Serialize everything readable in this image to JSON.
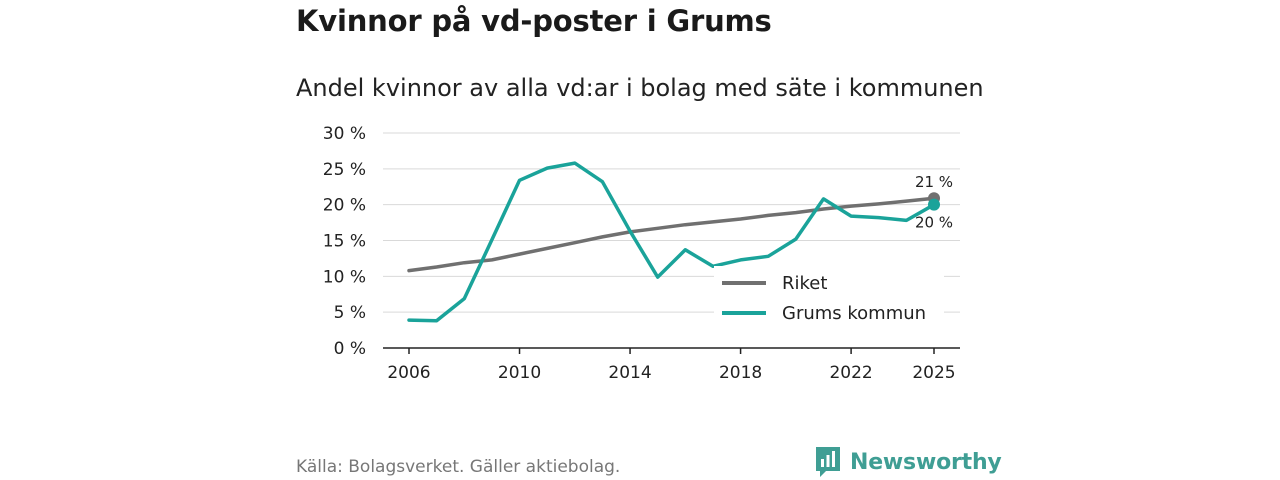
{
  "title": "Kvinnor på vd-poster i Grums",
  "source": "Källa: Bolagsverket. Gäller aktiebolag.",
  "logo": {
    "text": "Newsworthy"
  },
  "colors": {
    "riket": "#707070",
    "grums": "#1aa39a",
    "grid": "#d9d9d9",
    "axis": "#222222"
  },
  "chart_data": {
    "type": "line",
    "title": "Andel kvinnor av alla vd:ar i bolag med säte i kommunen",
    "xlabel": "",
    "ylabel": "",
    "xlim": [
      2005,
      2026
    ],
    "ylim": [
      0,
      30
    ],
    "x_ticks": [
      2006,
      2010,
      2014,
      2018,
      2022,
      2025
    ],
    "x_tick_labels": [
      "2006",
      "2010",
      "2014",
      "2018",
      "2022",
      "2025"
    ],
    "y_ticks": [
      0,
      5,
      10,
      15,
      20,
      25,
      30
    ],
    "y_tick_labels": [
      "0 %",
      "5 %",
      "10 %",
      "15 %",
      "20 %",
      "25 %",
      "30 %"
    ],
    "grid": true,
    "legend_position": "bottom-right",
    "series": [
      {
        "name": "Riket",
        "x": [
          2006,
          2007,
          2008,
          2009,
          2010,
          2011,
          2012,
          2013,
          2014,
          2015,
          2016,
          2017,
          2018,
          2019,
          2020,
          2021,
          2022,
          2023,
          2024,
          2025
        ],
        "values": [
          10.8,
          11.3,
          11.9,
          12.3,
          13.1,
          13.9,
          14.7,
          15.5,
          16.2,
          16.7,
          17.2,
          17.6,
          18.0,
          18.5,
          18.9,
          19.4,
          19.8,
          20.1,
          20.5,
          20.9
        ],
        "end_label": "21 %"
      },
      {
        "name": "Grums kommun",
        "x": [
          2006,
          2007,
          2008,
          2009,
          2010,
          2011,
          2012,
          2013,
          2014,
          2015,
          2016,
          2017,
          2018,
          2019,
          2020,
          2021,
          2022,
          2023,
          2024,
          2025
        ],
        "values": [
          3.9,
          3.8,
          6.9,
          15.1,
          23.4,
          25.1,
          25.8,
          23.2,
          16.3,
          9.9,
          13.7,
          11.4,
          12.3,
          12.8,
          15.2,
          20.8,
          18.4,
          18.2,
          17.8,
          20.0
        ],
        "end_label": "20 %"
      }
    ]
  }
}
